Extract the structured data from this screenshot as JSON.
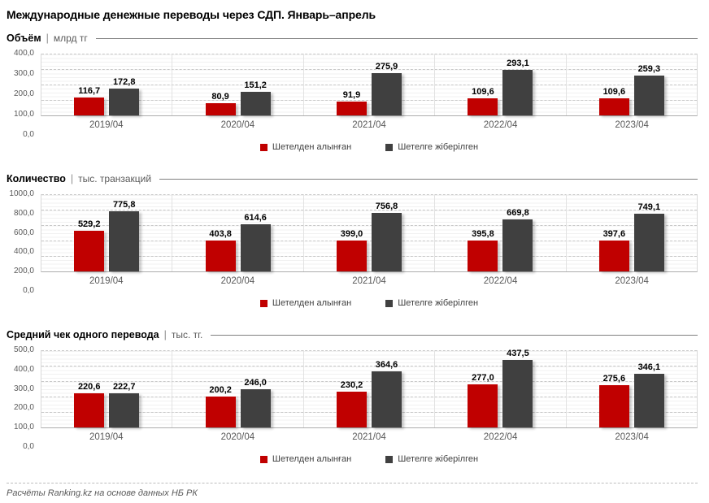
{
  "title": "Международные денежные переводы через СДП. Январь–апрель",
  "header_sep": "|",
  "footer": {
    "source": "Расчёты Ranking.kz на основе данных НБ РК"
  },
  "colors": {
    "received": "#c00000",
    "sent": "#404040"
  },
  "chart_data": [
    {
      "type": "bar",
      "title": "Объём",
      "unit": "млрд тг",
      "ylim": [
        0,
        400
      ],
      "grid": true,
      "legend_position": "bottom",
      "yticks": [
        "400,0",
        "300,0",
        "200,0",
        "100,0",
        "0,0"
      ],
      "categories": [
        "2019/04",
        "2020/04",
        "2021/04",
        "2022/04",
        "2023/04"
      ],
      "series": [
        {
          "name": "Шетелден алынған",
          "color": "#c00000",
          "values": [
            116.7,
            80.9,
            91.9,
            109.6,
            109.6
          ],
          "labels": [
            "116,7",
            "80,9",
            "91,9",
            "109,6",
            "109,6"
          ]
        },
        {
          "name": "Шетелге жіберілген",
          "color": "#404040",
          "values": [
            172.8,
            151.2,
            275.9,
            293.1,
            259.3
          ],
          "labels": [
            "172,8",
            "151,2",
            "275,9",
            "293,1",
            "259,3"
          ]
        }
      ]
    },
    {
      "type": "bar",
      "title": "Количество",
      "unit": "тыс. транзакций",
      "ylim": [
        0,
        1000
      ],
      "grid": true,
      "legend_position": "bottom",
      "yticks": [
        "1000,0",
        "800,0",
        "600,0",
        "400,0",
        "200,0",
        "0,0"
      ],
      "categories": [
        "2019/04",
        "2020/04",
        "2021/04",
        "2022/04",
        "2023/04"
      ],
      "series": [
        {
          "name": "Шетелден алынған",
          "color": "#c00000",
          "values": [
            529.2,
            403.8,
            399.0,
            395.8,
            397.6
          ],
          "labels": [
            "529,2",
            "403,8",
            "399,0",
            "395,8",
            "397,6"
          ]
        },
        {
          "name": "Шетелге жіберілген",
          "color": "#404040",
          "values": [
            775.8,
            614.6,
            756.8,
            669.8,
            749.1
          ],
          "labels": [
            "775,8",
            "614,6",
            "756,8",
            "669,8",
            "749,1"
          ]
        }
      ]
    },
    {
      "type": "bar",
      "title": "Средний чек одного перевода",
      "unit": "тыс. тг.",
      "ylim": [
        0,
        500
      ],
      "grid": true,
      "legend_position": "bottom",
      "yticks": [
        "500,0",
        "400,0",
        "300,0",
        "200,0",
        "100,0",
        "0,0"
      ],
      "categories": [
        "2019/04",
        "2020/04",
        "2021/04",
        "2022/04",
        "2023/04"
      ],
      "series": [
        {
          "name": "Шетелден алынған",
          "color": "#c00000",
          "values": [
            220.6,
            200.2,
            230.2,
            277.0,
            275.6
          ],
          "labels": [
            "220,6",
            "200,2",
            "230,2",
            "277,0",
            "275,6"
          ]
        },
        {
          "name": "Шетелге жіберілген",
          "color": "#404040",
          "values": [
            222.7,
            246.0,
            364.6,
            437.5,
            346.1
          ],
          "labels": [
            "222,7",
            "246,0",
            "364,6",
            "437,5",
            "346,1"
          ]
        }
      ]
    }
  ]
}
